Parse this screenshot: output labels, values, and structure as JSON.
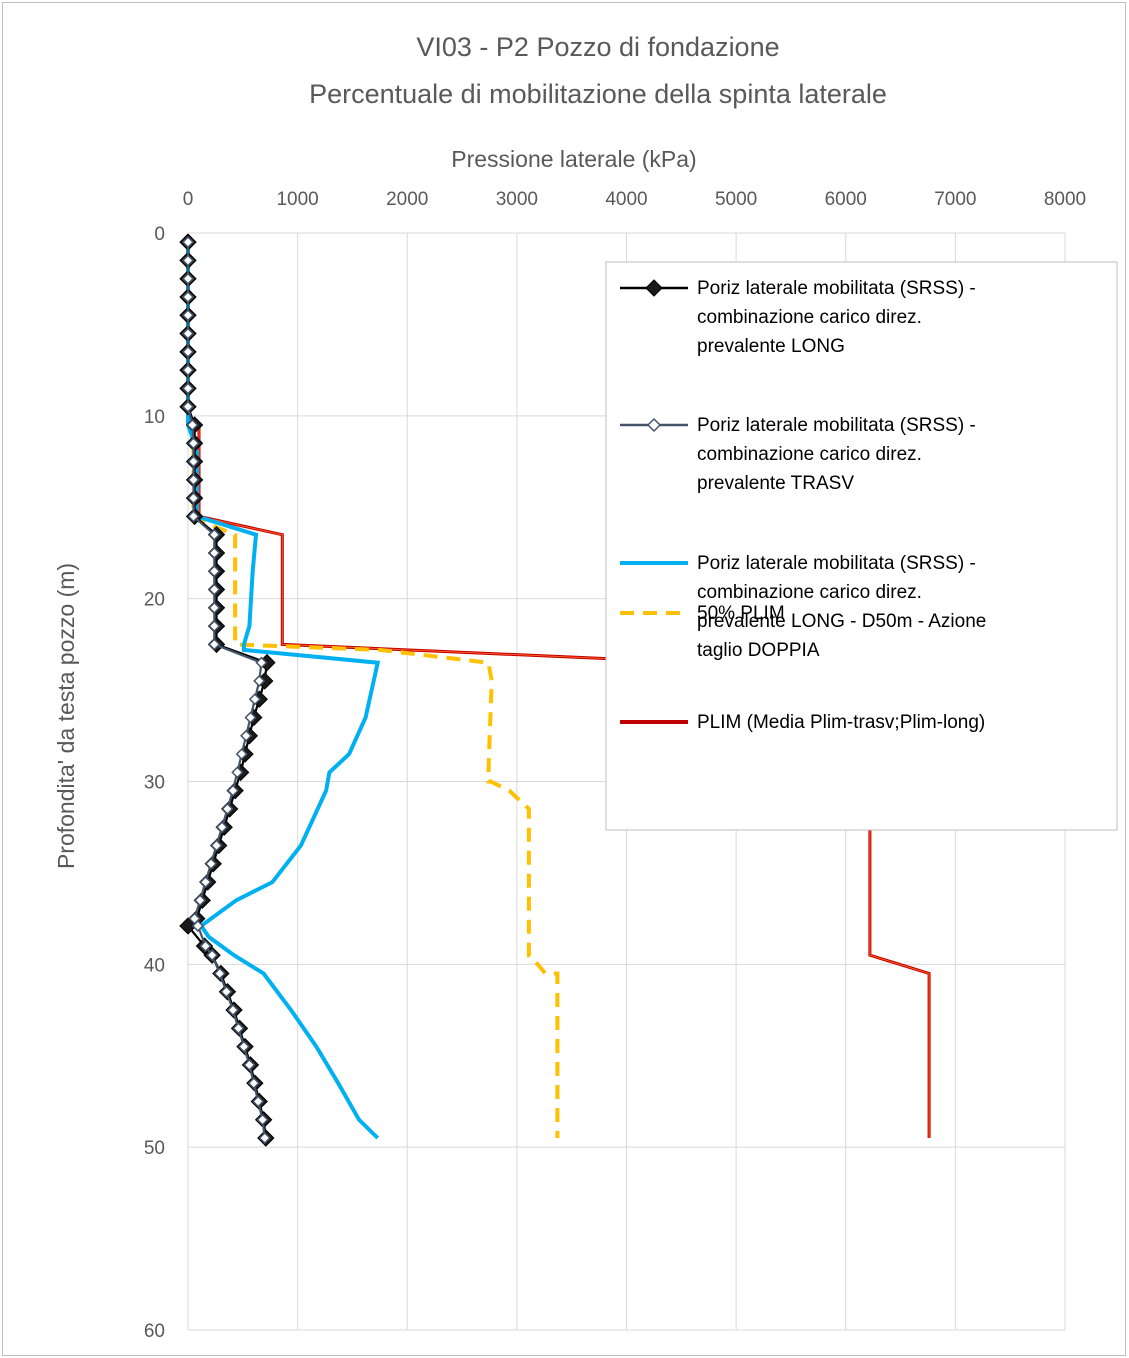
{
  "chart_data": {
    "type": "line",
    "title_lines": [
      "VI03 - P2 Pozzo di fondazione",
      "Percentuale di mobilitazione della spinta laterale"
    ],
    "xlabel": "Pressione laterale (kPa)",
    "ylabel": "Profondita' da testa pozzo (m)",
    "xlim": [
      0,
      8000
    ],
    "ylim": [
      0,
      60
    ],
    "y_inverted": true,
    "x_axis_position": "top",
    "xticks": [
      0,
      1000,
      2000,
      3000,
      4000,
      5000,
      6000,
      7000,
      8000
    ],
    "yticks": [
      0,
      10,
      20,
      30,
      40,
      50,
      60
    ],
    "grid": true,
    "legend_position": "top-right",
    "series": [
      {
        "name": "Poriz laterale mobilitata (SRSS) - combinazione carico direz. prevalente LONG",
        "color": "#000000",
        "marker": "filled-diamond",
        "dash": "solid",
        "x": [
          0,
          0,
          0,
          0,
          0,
          0,
          0,
          0,
          0,
          0,
          60,
          60,
          60,
          60,
          60,
          60,
          260,
          260,
          260,
          260,
          260,
          260,
          260,
          720,
          700,
          650,
          600,
          560,
          520,
          480,
          430,
          380,
          330,
          280,
          230,
          180,
          130,
          80,
          0,
          150,
          220,
          300,
          360,
          420,
          470,
          520,
          570,
          610,
          650,
          690,
          710
        ],
        "y": [
          0.5,
          1.5,
          2.5,
          3.5,
          4.5,
          5.5,
          6.5,
          7.5,
          8.5,
          9.5,
          10.5,
          11.5,
          12.5,
          13.5,
          14.5,
          15.5,
          16.5,
          17.5,
          18.5,
          19.5,
          20.5,
          21.5,
          22.5,
          23.5,
          24.5,
          25.5,
          26.5,
          27.5,
          28.5,
          29.5,
          30.5,
          31.5,
          32.5,
          33.5,
          34.5,
          35.5,
          36.5,
          37.5,
          37.9,
          39.0,
          39.5,
          40.5,
          41.5,
          42.5,
          43.5,
          44.5,
          45.5,
          46.5,
          47.5,
          48.5,
          49.5
        ]
      },
      {
        "name": "Poriz laterale mobilitata (SRSS) - combinazione carico direz. prevalente TRASV",
        "color": "#44546a",
        "marker": "hollow-diamond",
        "dash": "solid",
        "x": [
          0,
          0,
          0,
          0,
          0,
          0,
          0,
          0,
          0,
          0,
          40,
          50,
          50,
          50,
          50,
          50,
          240,
          240,
          240,
          240,
          240,
          240,
          240,
          670,
          650,
          610,
          570,
          530,
          490,
          450,
          410,
          360,
          310,
          260,
          210,
          160,
          110,
          60,
          90,
          160,
          220,
          290,
          350,
          410,
          460,
          510,
          560,
          600,
          640,
          680,
          700
        ],
        "y": [
          0.5,
          1.5,
          2.5,
          3.5,
          4.5,
          5.5,
          6.5,
          7.5,
          8.5,
          9.5,
          10.5,
          11.5,
          12.5,
          13.5,
          14.5,
          15.5,
          16.5,
          17.5,
          18.5,
          19.5,
          20.5,
          21.5,
          22.5,
          23.5,
          24.5,
          25.5,
          26.5,
          27.5,
          28.5,
          29.5,
          30.5,
          31.5,
          32.5,
          33.5,
          34.5,
          35.5,
          36.5,
          37.5,
          37.9,
          39.0,
          39.5,
          40.5,
          41.5,
          42.5,
          43.5,
          44.5,
          45.5,
          46.5,
          47.5,
          48.5,
          49.5
        ]
      },
      {
        "name": "Poriz laterale mobilitata (SRSS) - combinazione carico direz. prevalente LONG - D50m - Azione taglio DOPPIA",
        "color": "#00b0f0",
        "marker": "none",
        "dash": "solid",
        "x": [
          0,
          0,
          0,
          60,
          80,
          80,
          80,
          620,
          590,
          570,
          560,
          510,
          510,
          1730,
          1620,
          1470,
          1290,
          1260,
          1030,
          770,
          440,
          120,
          190,
          420,
          690,
          940,
          1170,
          1370,
          1560,
          1730
        ],
        "y": [
          0.5,
          5,
          10.5,
          11.5,
          12,
          15.5,
          15.5,
          16.5,
          18.5,
          20.5,
          21.5,
          22.5,
          22.8,
          23.5,
          26.5,
          28.5,
          29.5,
          30.5,
          33.5,
          35.5,
          36.5,
          37.9,
          38.5,
          39.5,
          40.5,
          42.5,
          44.5,
          46.5,
          48.5,
          49.5
        ]
      },
      {
        "name": "50% PLIM",
        "color": "#ffc000",
        "marker": "none",
        "dash": "dashed",
        "x": [
          0,
          0,
          0,
          50,
          50,
          50,
          50,
          430,
          430,
          430,
          430,
          1750,
          2740,
          2770,
          2740,
          2740,
          2760,
          2930,
          3110,
          3110,
          3110,
          3110,
          3120,
          3260,
          3370,
          3370,
          3370
        ],
        "y": [
          0.5,
          5,
          10.5,
          11,
          14,
          15.5,
          15.6,
          16.5,
          18.5,
          21.5,
          22.5,
          22.8,
          23.5,
          24.5,
          29.5,
          30,
          30,
          30.5,
          31.5,
          35.5,
          38.5,
          39.5,
          39.5,
          40.5,
          40.5,
          45.5,
          49.5
        ]
      },
      {
        "name": "PLIM (Media Plim-trasv;Plim-long)",
        "color": "#c00000",
        "marker": "none",
        "dash": "solid",
        "x": [
          0,
          0,
          0,
          100,
          100,
          100,
          860,
          860,
          860,
          860,
          3900,
          5500,
          5500,
          6220,
          6220,
          6220,
          6220,
          6760,
          6760,
          6760
        ],
        "y": [
          0.5,
          5,
          10,
          10.5,
          11.5,
          15.5,
          16.5,
          20.5,
          22.5,
          22.5,
          23.3,
          23.5,
          29.5,
          30.5,
          35.5,
          38.5,
          39.5,
          40.5,
          45.5,
          49.5
        ]
      }
    ]
  }
}
